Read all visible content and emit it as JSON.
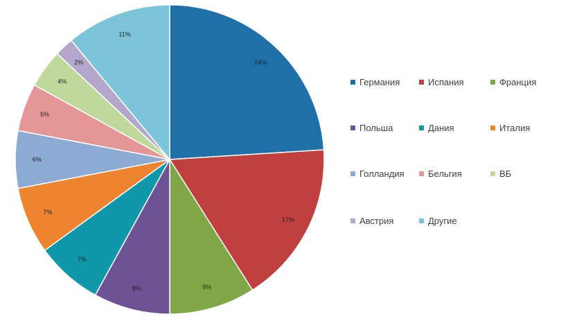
{
  "chart_data": {
    "type": "pie",
    "legend_position": "right",
    "start": "12 o'clock",
    "direction": "clockwise",
    "slices": [
      {
        "label": "Германия",
        "value": 24,
        "display": "24%",
        "color": "#1f6fa9"
      },
      {
        "label": "Испания",
        "value": 17,
        "display": "17%",
        "color": "#c0403f"
      },
      {
        "label": "Франция",
        "value": 9,
        "display": "9%",
        "color": "#7fa745"
      },
      {
        "label": "Польша",
        "value": 8,
        "display": "8%",
        "color": "#6e5296"
      },
      {
        "label": "Дания",
        "value": 7,
        "display": "7%",
        "color": "#0e98a9"
      },
      {
        "label": "Италия",
        "value": 7,
        "display": "7%",
        "color": "#ef8430"
      },
      {
        "label": "Голландия",
        "value": 6,
        "display": "6%",
        "color": "#8daad4"
      },
      {
        "label": "Бельгия",
        "value": 5,
        "display": "5%",
        "color": "#e59696"
      },
      {
        "label": "ВБ",
        "value": 4,
        "display": "4%",
        "color": "#bfd89b"
      },
      {
        "label": "Австрия",
        "value": 2,
        "display": "2%",
        "color": "#b3a8cc"
      },
      {
        "label": "Другие",
        "value": 11,
        "display": "11%",
        "color": "#7cc5d8"
      }
    ]
  }
}
